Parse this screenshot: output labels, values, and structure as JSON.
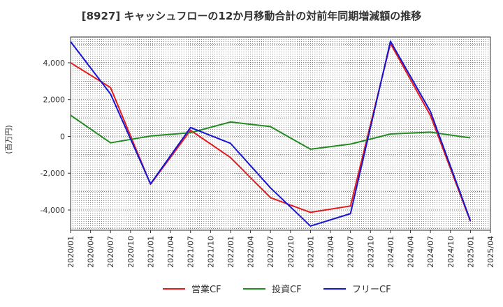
{
  "chart_data": {
    "type": "line",
    "title": "[8927]  キャッシュフローの12か月移動合計の対前年同期増減額の推移",
    "ylabel": "(百万円)",
    "xlabel": "",
    "x": [
      "2020/01",
      "2020/04",
      "2020/07",
      "2020/10",
      "2021/01",
      "2021/04",
      "2021/07",
      "2021/10",
      "2022/01",
      "2022/04",
      "2022/07",
      "2022/10",
      "2023/01",
      "2023/04",
      "2023/07",
      "2023/10",
      "2024/01",
      "2024/04",
      "2024/07",
      "2024/10",
      "2025/01",
      "2025/04"
    ],
    "ylim": [
      -5100,
      5400
    ],
    "yticks": [
      4000,
      2000,
      0,
      -2000,
      -4000
    ],
    "ytick_labels": [
      "4,000",
      "2,000",
      "0",
      "-2,000",
      "-4,000"
    ],
    "grid": true,
    "legend_position": "bottom",
    "series": [
      {
        "name": "営業CF",
        "color": "#e8191c",
        "points": [
          [
            "2020/01",
            4000
          ],
          [
            "2020/07",
            2650
          ],
          [
            "2021/01",
            -2600
          ],
          [
            "2021/07",
            330
          ],
          [
            "2022/01",
            -1150
          ],
          [
            "2022/07",
            -3330
          ],
          [
            "2023/01",
            -4130
          ],
          [
            "2023/07",
            -3780
          ],
          [
            "2024/01",
            5050
          ],
          [
            "2024/07",
            1130
          ],
          [
            "2025/01",
            -4620
          ]
        ]
      },
      {
        "name": "投資CF",
        "color": "#228b22",
        "points": [
          [
            "2020/01",
            1150
          ],
          [
            "2020/07",
            -350
          ],
          [
            "2021/01",
            20
          ],
          [
            "2021/07",
            200
          ],
          [
            "2022/01",
            780
          ],
          [
            "2022/07",
            530
          ],
          [
            "2023/01",
            -700
          ],
          [
            "2023/07",
            -420
          ],
          [
            "2024/01",
            130
          ],
          [
            "2024/07",
            230
          ],
          [
            "2025/01",
            -80
          ]
        ]
      },
      {
        "name": "フリーCF",
        "color": "#1414d4",
        "points": [
          [
            "2020/01",
            5150
          ],
          [
            "2020/07",
            2300
          ],
          [
            "2021/01",
            -2580
          ],
          [
            "2021/07",
            480
          ],
          [
            "2022/01",
            -380
          ],
          [
            "2022/07",
            -2800
          ],
          [
            "2023/01",
            -4870
          ],
          [
            "2023/07",
            -4200
          ],
          [
            "2024/01",
            5170
          ],
          [
            "2024/07",
            1350
          ],
          [
            "2025/01",
            -4580
          ]
        ]
      }
    ]
  }
}
